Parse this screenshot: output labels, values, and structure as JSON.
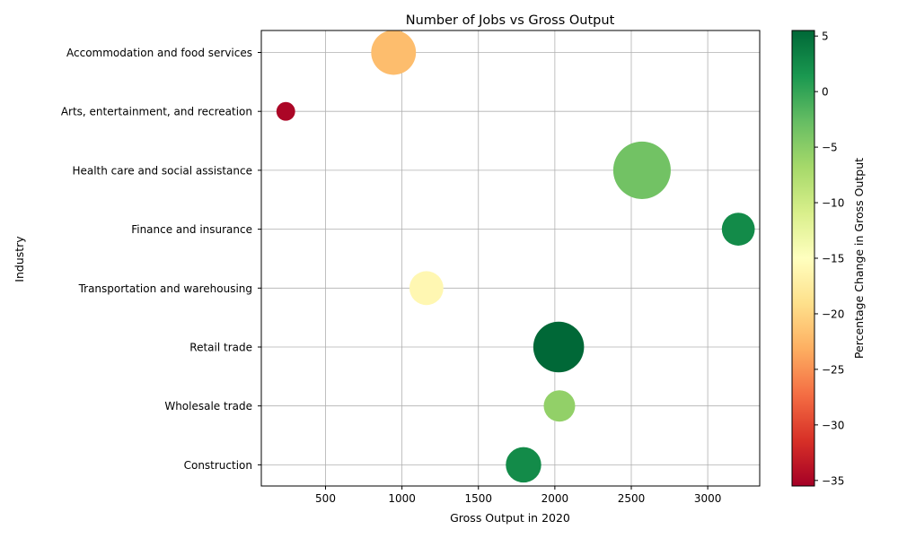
{
  "chart_data": {
    "type": "scatter",
    "title": "Number of Jobs vs Gross Output",
    "xlabel": "Gross Output in 2020",
    "ylabel": "Industry",
    "xlim": [
      80,
      3340
    ],
    "x_ticks": [
      500,
      1000,
      1500,
      2000,
      2500,
      3000
    ],
    "categories": [
      "Construction",
      "Wholesale trade",
      "Retail trade",
      "Transportation and warehousing",
      "Finance and insurance",
      "Health care and social assistance",
      "Arts, entertainment, and recreation",
      "Accommodation and food services"
    ],
    "points": [
      {
        "category": "Construction",
        "x": 1795,
        "color_value": 2.5,
        "size_value": 7.5
      },
      {
        "category": "Wholesale trade",
        "x": 2030,
        "color_value": -5.5,
        "size_value": 5.9
      },
      {
        "category": "Retail trade",
        "x": 2025,
        "color_value": 5.5,
        "size_value": 15.4
      },
      {
        "category": "Transportation and warehousing",
        "x": 1160,
        "color_value": -16,
        "size_value": 6.9
      },
      {
        "category": "Finance and insurance",
        "x": 3200,
        "color_value": 2.5,
        "size_value": 6.5
      },
      {
        "category": "Health care and social assistance",
        "x": 2570,
        "color_value": -3.5,
        "size_value": 19.8
      },
      {
        "category": "Arts, entertainment, and recreation",
        "x": 240,
        "color_value": -35,
        "size_value": 2.1
      },
      {
        "category": "Accommodation and food services",
        "x": 945,
        "color_value": -22,
        "size_value": 12.0
      }
    ],
    "colorbar": {
      "label": "Percentage Change in Gross Output",
      "min": -35.5,
      "max": 5.5,
      "ticks": [
        5,
        0,
        -5,
        -10,
        -15,
        -20,
        -25,
        -30,
        -35
      ],
      "colormap": "RdYlGn",
      "colormap_stops": [
        "#a50026",
        "#d73027",
        "#f46d43",
        "#fdae61",
        "#fee08b",
        "#ffffbf",
        "#d9ef8b",
        "#a6d96a",
        "#66bd63",
        "#1a9850",
        "#006837"
      ]
    },
    "grid": true
  }
}
